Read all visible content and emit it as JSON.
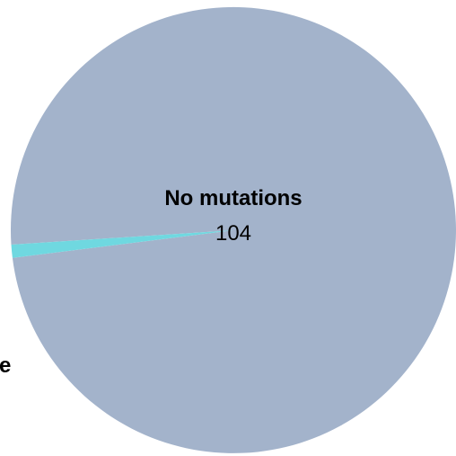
{
  "chart_data": {
    "type": "pie",
    "title": "",
    "slices": [
      {
        "name": "No mutations",
        "value": 104,
        "value_label": "104",
        "color": "#a3b3cb",
        "label_visible": true
      },
      {
        "name": "",
        "value": 1,
        "value_label": "",
        "color": "#6fd8e0",
        "label_visible": false,
        "clipped_label_fragment": "e"
      }
    ],
    "legend": "none"
  }
}
